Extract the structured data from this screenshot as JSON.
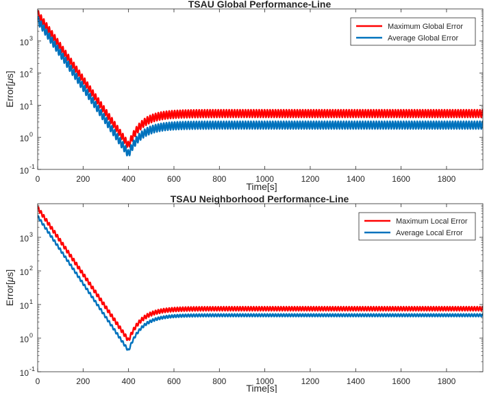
{
  "chart_data": [
    {
      "type": "line",
      "title": "TSAU Global Performance-Line",
      "xlabel": "Time[s]",
      "ylabel_prefix": "Error[",
      "ylabel_mu": "μ",
      "ylabel_suffix": "s]",
      "xlim": [
        0,
        1960
      ],
      "ylim": [
        0.1,
        10000
      ],
      "yscale": "log",
      "x_ticks": [
        "0",
        "200",
        "400",
        "600",
        "800",
        "1000",
        "1200",
        "1400",
        "1600",
        "1800"
      ],
      "x_tick_values": [
        0,
        200,
        400,
        600,
        800,
        1000,
        1200,
        1400,
        1600,
        1800
      ],
      "y_ticks": [
        "10",
        "10",
        "10",
        "10",
        "10"
      ],
      "y_tick_exponents": [
        "-1",
        "0",
        "1",
        "2",
        "3"
      ],
      "y_tick_values": [
        0.1,
        1,
        10,
        100,
        1000
      ],
      "legend_position": "top-right",
      "series": [
        {
          "name": "Maximum Global Error",
          "color": "#ff0000",
          "start_value": 7000,
          "min_x": 400,
          "min_value": 0.55,
          "steady_value": 5.5,
          "ripple": 0.12
        },
        {
          "name": "Average Global Error",
          "color": "#0072bd",
          "start_value": 4500,
          "min_x": 400,
          "min_value": 0.3,
          "steady_value": 2.4,
          "ripple": 0.12
        }
      ]
    },
    {
      "type": "line",
      "title": "TSAU Neighborhood Performance-Line",
      "xlabel": "Time[s]",
      "ylabel_prefix": "Error[",
      "ylabel_mu": "μ",
      "ylabel_suffix": "s]",
      "xlim": [
        0,
        1960
      ],
      "ylim": [
        0.1,
        10000
      ],
      "yscale": "log",
      "x_ticks": [
        "0",
        "200",
        "400",
        "600",
        "800",
        "1000",
        "1200",
        "1400",
        "1600",
        "1800"
      ],
      "x_tick_values": [
        0,
        200,
        400,
        600,
        800,
        1000,
        1200,
        1400,
        1600,
        1800
      ],
      "y_ticks": [
        "10",
        "10",
        "10",
        "10",
        "10"
      ],
      "y_tick_exponents": [
        "-1",
        "0",
        "1",
        "2",
        "3"
      ],
      "y_tick_values": [
        0.1,
        1,
        10,
        100,
        1000
      ],
      "legend_position": "top-right",
      "series": [
        {
          "name": "Maximum Local Error",
          "color": "#ff0000",
          "start_value": 7500,
          "min_x": 400,
          "min_value": 0.85,
          "steady_value": 7.5,
          "ripple": 0.06
        },
        {
          "name": "Average Local Error",
          "color": "#0072bd",
          "start_value": 4200,
          "min_x": 400,
          "min_value": 0.42,
          "steady_value": 4.8,
          "ripple": 0.04
        }
      ]
    }
  ]
}
